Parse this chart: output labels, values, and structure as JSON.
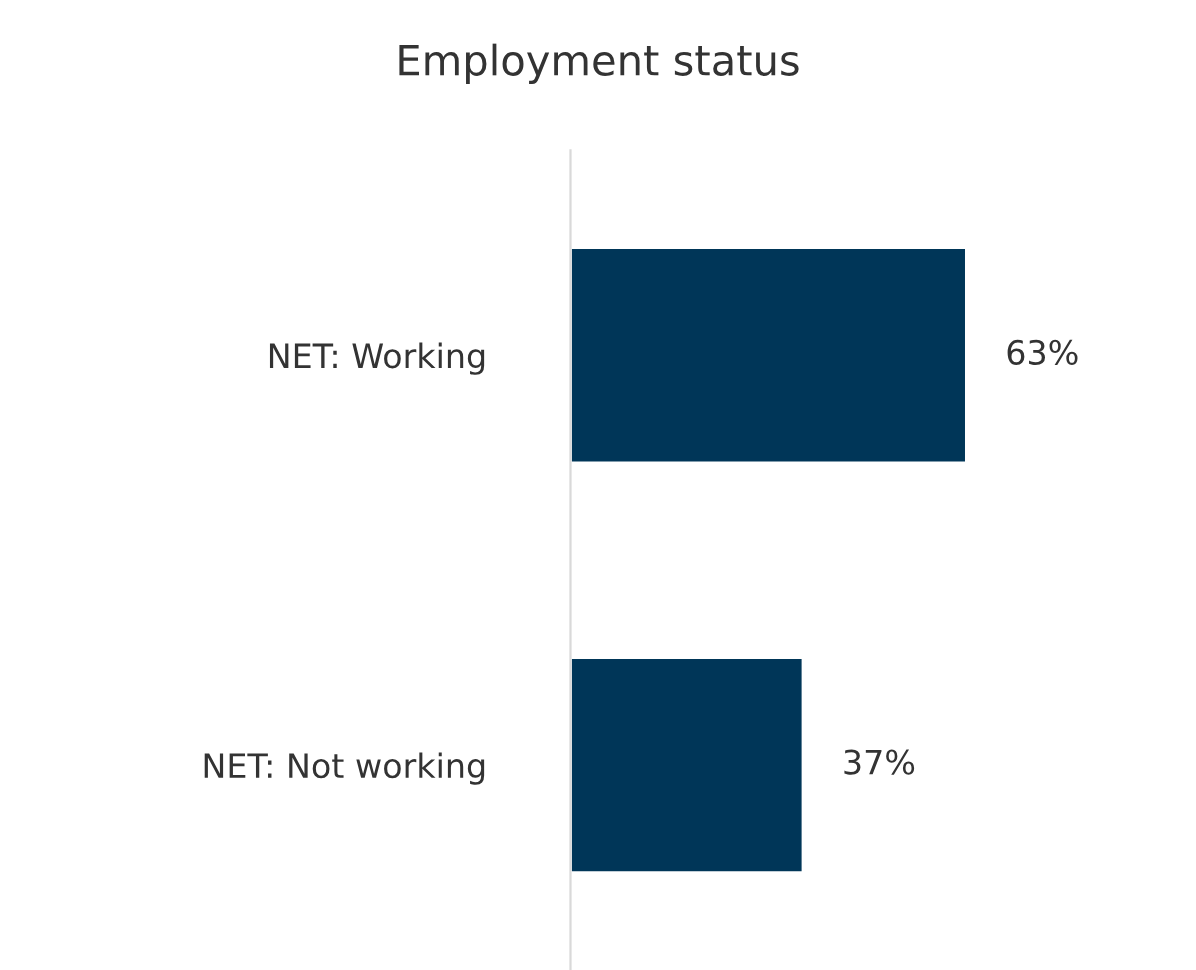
{
  "chart_data": {
    "type": "bar",
    "orientation": "horizontal",
    "title": "Employment status",
    "categories": [
      "NET: Working",
      "NET: Not working"
    ],
    "values": [
      63,
      37
    ],
    "color": "#003658",
    "value_labels": [
      "63%",
      "37%"
    ],
    "grid": false,
    "legend": false
  }
}
